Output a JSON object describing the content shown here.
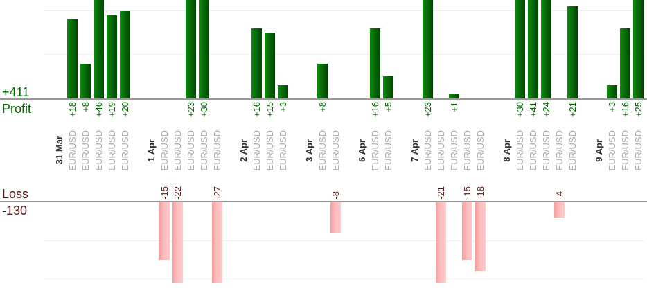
{
  "labels": {
    "profit_total": "+411",
    "profit_axis": "Profit",
    "loss_axis": "Loss",
    "loss_total": "-130"
  },
  "colors": {
    "profit_text": "#006600",
    "loss_text": "#5a1717",
    "date_text": "#2e2e2e",
    "symbol_text": "#aaaaaa",
    "profit_bar_light": "#0d8c0d",
    "profit_bar_dark": "#014401",
    "loss_bar_dark": "#f79c9c",
    "loss_bar_light": "#ffcaca",
    "baseline": "#999999",
    "gridline": "#f0f0f0"
  },
  "chart_data": {
    "type": "bar",
    "description_visible_text": [
      "Profit",
      "Loss"
    ],
    "profit_total": 411,
    "loss_total": -130,
    "profit_gridline_values": [
      10,
      20
    ],
    "loss_gridline_values": [
      -10,
      -20
    ],
    "profit_visible_range": [
      0,
      22.5
    ],
    "loss_visible_range": [
      0,
      -21
    ],
    "clipping": "bars beyond visible range are clipped at plot edges",
    "groups": [
      {
        "date": "31 Mar",
        "trades": [
          {
            "symbol": "EUR/USD",
            "value": 18
          },
          {
            "symbol": "EUR/USD",
            "value": 8
          },
          {
            "symbol": "EUR/USD",
            "value": 46
          },
          {
            "symbol": "EUR/USD",
            "value": 19
          },
          {
            "symbol": "EUR/USD",
            "value": 20
          }
        ]
      },
      {
        "date": "1 Apr",
        "trades": [
          {
            "symbol": "EUR/USD",
            "value": -15
          },
          {
            "symbol": "EUR/USD",
            "value": -22
          },
          {
            "symbol": "EUR/USD",
            "value": 23
          },
          {
            "symbol": "EUR/USD",
            "value": 30
          },
          {
            "symbol": "EUR/USD",
            "value": -27
          }
        ]
      },
      {
        "date": "2 Apr",
        "trades": [
          {
            "symbol": "EUR/USD",
            "value": 16
          },
          {
            "symbol": "EUR/USD",
            "value": 15
          },
          {
            "symbol": "EUR/USD",
            "value": 3
          }
        ]
      },
      {
        "date": "3 Apr",
        "trades": [
          {
            "symbol": "EUR/USD",
            "value": 8
          },
          {
            "symbol": "EUR/USD",
            "value": -8
          }
        ]
      },
      {
        "date": "6 Apr",
        "trades": [
          {
            "symbol": "EUR/USD",
            "value": 16
          },
          {
            "symbol": "EUR/USD",
            "value": 5
          }
        ]
      },
      {
        "date": "7 Apr",
        "trades": [
          {
            "symbol": "EUR/USD",
            "value": 23
          },
          {
            "symbol": "EUR/USD",
            "value": -21
          },
          {
            "symbol": "EUR/USD",
            "value": 1
          },
          {
            "symbol": "EUR/USD",
            "value": -15
          },
          {
            "symbol": "EUR/USD",
            "value": -18
          }
        ]
      },
      {
        "date": "8 Apr",
        "trades": [
          {
            "symbol": "EUR/USD",
            "value": 30
          },
          {
            "symbol": "EUR/USD",
            "value": 41
          },
          {
            "symbol": "EUR/USD",
            "value": 24
          },
          {
            "symbol": "EUR/USD",
            "value": -4
          },
          {
            "symbol": "EUR/USD",
            "value": 21
          }
        ]
      },
      {
        "date": "9 Apr",
        "trades": [
          {
            "symbol": "EUR/USD",
            "value": 3
          },
          {
            "symbol": "EUR/USD",
            "value": 16
          },
          {
            "symbol": "EUR/USD",
            "value": 25
          }
        ]
      }
    ]
  }
}
